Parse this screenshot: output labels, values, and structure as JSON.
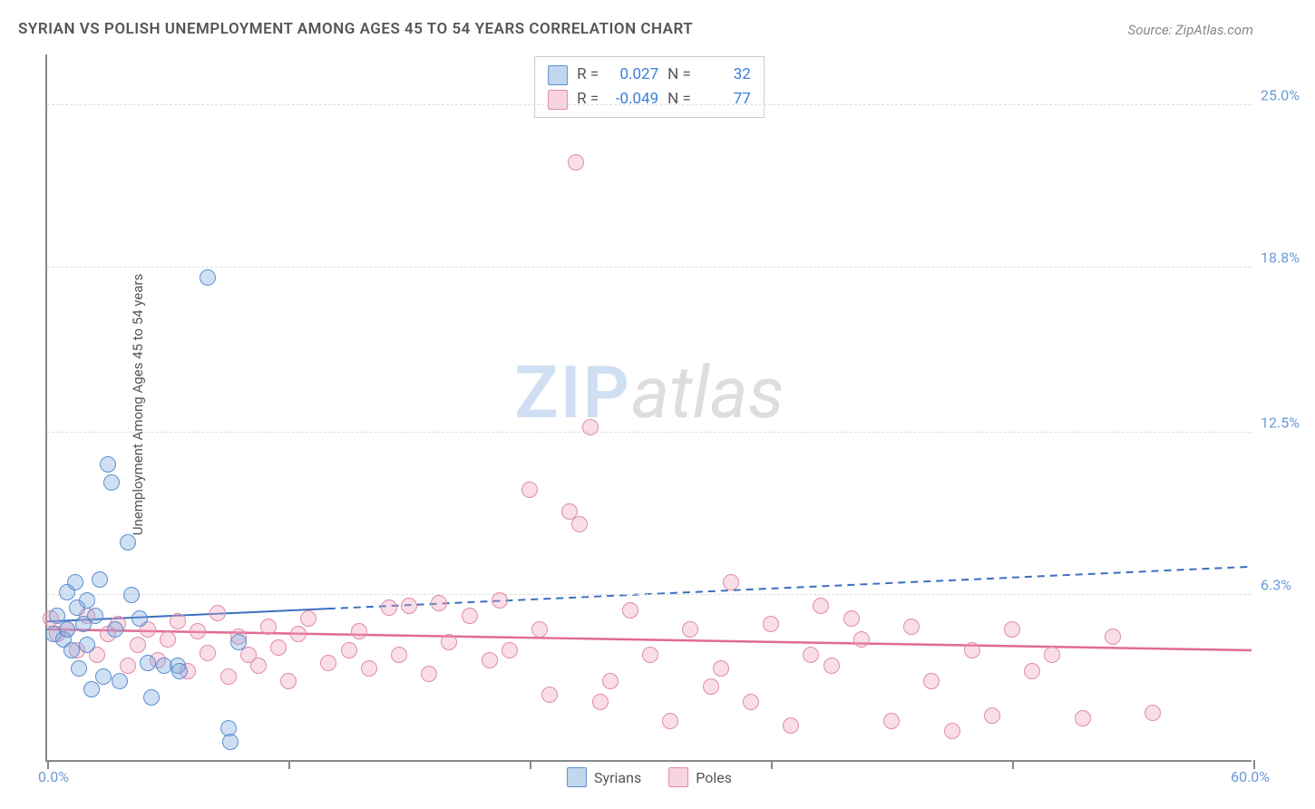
{
  "title": "SYRIAN VS POLISH UNEMPLOYMENT AMONG AGES 45 TO 54 YEARS CORRELATION CHART",
  "source": "Source: ZipAtlas.com",
  "ylabel": "Unemployment Among Ages 45 to 54 years",
  "watermark": {
    "part1": "ZIP",
    "part2": "atlas"
  },
  "chart": {
    "type": "scatter",
    "xlim": [
      0,
      60
    ],
    "ylim": [
      0,
      27
    ],
    "xmin_label": "0.0%",
    "xmax_label": "60.0%",
    "ytick_labels": [
      "6.3%",
      "12.5%",
      "18.8%",
      "25.0%"
    ],
    "ytick_values": [
      6.3,
      12.5,
      18.8,
      25.0
    ],
    "xtick_values": [
      0,
      12,
      24,
      36,
      48,
      60
    ],
    "background_color": "#ffffff",
    "grid_color": "#dddddd",
    "axis_color": "#888888",
    "label_color": "#6a9ad8",
    "marker_size": 18,
    "series": {
      "blue": {
        "label": "Syrians",
        "fill": "rgba(120,165,220,0.35)",
        "stroke": "#5b8fd0",
        "R": "0.027",
        "N": "32",
        "trend": {
          "y_at_x0": 5.3,
          "y_at_x60": 7.4,
          "solid_until_x": 14,
          "color": "#3b6fc0",
          "width": 2,
          "dash": "8 6"
        },
        "points": [
          [
            0.3,
            4.8
          ],
          [
            0.5,
            5.5
          ],
          [
            0.8,
            4.6
          ],
          [
            1.0,
            6.4
          ],
          [
            1.0,
            5.0
          ],
          [
            1.2,
            4.2
          ],
          [
            1.4,
            6.8
          ],
          [
            1.5,
            5.8
          ],
          [
            1.6,
            3.5
          ],
          [
            1.8,
            5.2
          ],
          [
            2.0,
            6.1
          ],
          [
            2.0,
            4.4
          ],
          [
            2.2,
            2.7
          ],
          [
            2.4,
            5.5
          ],
          [
            2.6,
            6.9
          ],
          [
            2.8,
            3.2
          ],
          [
            3.0,
            11.3
          ],
          [
            3.2,
            10.6
          ],
          [
            3.4,
            5.0
          ],
          [
            3.6,
            3.0
          ],
          [
            4.0,
            8.3
          ],
          [
            4.2,
            6.3
          ],
          [
            4.6,
            5.4
          ],
          [
            5.0,
            3.7
          ],
          [
            5.2,
            2.4
          ],
          [
            5.8,
            3.6
          ],
          [
            6.5,
            3.6
          ],
          [
            6.6,
            3.4
          ],
          [
            8.0,
            18.4
          ],
          [
            9.0,
            1.2
          ],
          [
            9.1,
            0.7
          ],
          [
            9.5,
            4.5
          ]
        ]
      },
      "pink": {
        "label": "Poles",
        "fill": "rgba(240,160,185,0.35)",
        "stroke": "#e08ba8",
        "R": "-0.049",
        "N": "77",
        "trend": {
          "y_at_x0": 5.0,
          "y_at_x60": 4.2,
          "solid_until_x": 60,
          "color": "#e26a95",
          "width": 2.5,
          "dash": ""
        },
        "points": [
          [
            0.2,
            5.4
          ],
          [
            0.5,
            4.8
          ],
          [
            1.0,
            5.0
          ],
          [
            1.5,
            4.2
          ],
          [
            2.0,
            5.5
          ],
          [
            2.5,
            4.0
          ],
          [
            3.0,
            4.8
          ],
          [
            3.5,
            5.2
          ],
          [
            4.0,
            3.6
          ],
          [
            4.5,
            4.4
          ],
          [
            5.0,
            5.0
          ],
          [
            5.5,
            3.8
          ],
          [
            6.0,
            4.6
          ],
          [
            6.5,
            5.3
          ],
          [
            7.0,
            3.4
          ],
          [
            7.5,
            4.9
          ],
          [
            8.0,
            4.1
          ],
          [
            8.5,
            5.6
          ],
          [
            9.0,
            3.2
          ],
          [
            9.5,
            4.7
          ],
          [
            10.0,
            4.0
          ],
          [
            10.5,
            3.6
          ],
          [
            11.0,
            5.1
          ],
          [
            11.5,
            4.3
          ],
          [
            12.0,
            3.0
          ],
          [
            12.5,
            4.8
          ],
          [
            13.0,
            5.4
          ],
          [
            14.0,
            3.7
          ],
          [
            15.0,
            4.2
          ],
          [
            15.5,
            4.9
          ],
          [
            16.0,
            3.5
          ],
          [
            17.0,
            5.8
          ],
          [
            17.5,
            4.0
          ],
          [
            18.0,
            5.9
          ],
          [
            19.0,
            3.3
          ],
          [
            19.5,
            6.0
          ],
          [
            20.0,
            4.5
          ],
          [
            21.0,
            5.5
          ],
          [
            22.0,
            3.8
          ],
          [
            22.5,
            6.1
          ],
          [
            23.0,
            4.2
          ],
          [
            24.0,
            10.3
          ],
          [
            24.5,
            5.0
          ],
          [
            25.0,
            2.5
          ],
          [
            26.0,
            9.5
          ],
          [
            26.3,
            22.8
          ],
          [
            26.5,
            9.0
          ],
          [
            27.0,
            12.7
          ],
          [
            27.5,
            2.2
          ],
          [
            28.0,
            3.0
          ],
          [
            29.0,
            5.7
          ],
          [
            30.0,
            4.0
          ],
          [
            31.0,
            1.5
          ],
          [
            32.0,
            5.0
          ],
          [
            33.0,
            2.8
          ],
          [
            33.5,
            3.5
          ],
          [
            34.0,
            6.8
          ],
          [
            35.0,
            2.2
          ],
          [
            36.0,
            5.2
          ],
          [
            37.0,
            1.3
          ],
          [
            38.0,
            4.0
          ],
          [
            38.5,
            5.9
          ],
          [
            39.0,
            3.6
          ],
          [
            40.0,
            5.4
          ],
          [
            40.5,
            4.6
          ],
          [
            42.0,
            1.5
          ],
          [
            43.0,
            5.1
          ],
          [
            44.0,
            3.0
          ],
          [
            45.0,
            1.1
          ],
          [
            46.0,
            4.2
          ],
          [
            47.0,
            1.7
          ],
          [
            48.0,
            5.0
          ],
          [
            49.0,
            3.4
          ],
          [
            50.0,
            4.0
          ],
          [
            51.5,
            1.6
          ],
          [
            53.0,
            4.7
          ],
          [
            55.0,
            1.8
          ]
        ]
      }
    }
  },
  "legend_top": {
    "r_label": "R =",
    "n_label": "N ="
  }
}
